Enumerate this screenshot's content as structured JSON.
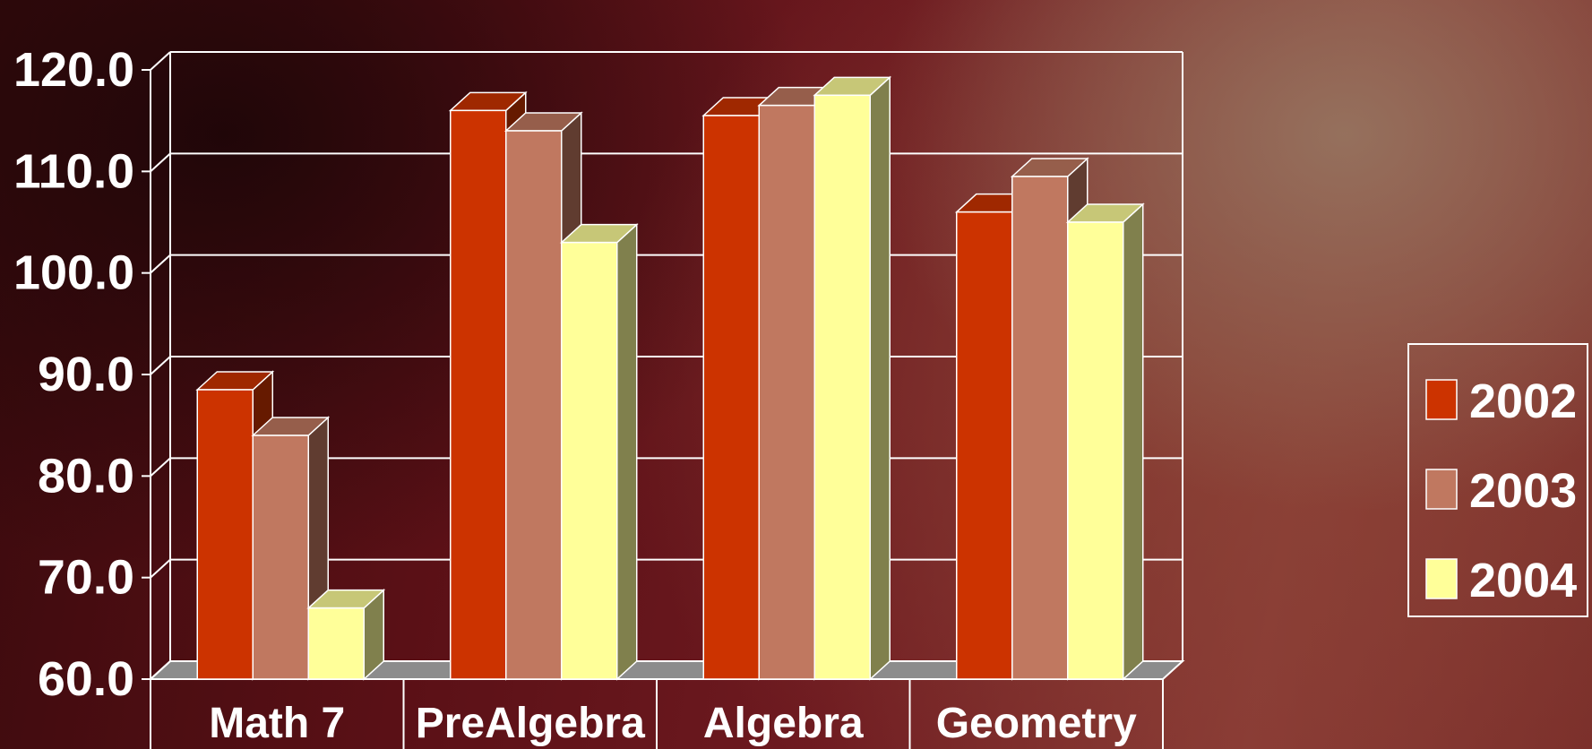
{
  "chart_data": {
    "type": "bar",
    "title": "",
    "xlabel": "",
    "ylabel": "",
    "categories": [
      "Math 7",
      "PreAlgebra",
      "Algebra",
      "Geometry"
    ],
    "series": [
      {
        "name": "2002",
        "values": [
          88.5,
          116.0,
          115.5,
          106.0
        ],
        "color": "#cc3300"
      },
      {
        "name": "2003",
        "values": [
          84.0,
          114.0,
          116.5,
          109.5
        ],
        "color": "#c07860"
      },
      {
        "name": "2004",
        "values": [
          67.0,
          103.0,
          117.5,
          105.0
        ],
        "color": "#ffff99"
      }
    ],
    "ylim": [
      60,
      120
    ],
    "yticks": [
      "60.0",
      "70.0",
      "80.0",
      "90.0",
      "100.0",
      "110.0",
      "120.0"
    ],
    "grid": true,
    "legend_position": "right",
    "style": "3d-column"
  }
}
